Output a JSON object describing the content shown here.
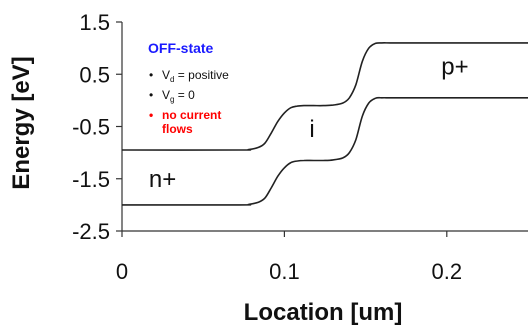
{
  "chart_data": {
    "type": "line",
    "title": "",
    "xlabel": "Location [um]",
    "ylabel": "Energy [eV]",
    "xlim": [
      0,
      0.25
    ],
    "ylim": [
      -2.5,
      1.5
    ],
    "x_ticks": [
      "0",
      "0.1",
      "0.2"
    ],
    "x_tick_values": [
      0,
      0.1,
      0.2
    ],
    "y_ticks": [
      "1.5",
      "0.5",
      "-0.5",
      "-1.5",
      "-2.5"
    ],
    "y_tick_values": [
      1.5,
      0.5,
      -0.5,
      -1.5,
      -2.5
    ],
    "grid": false,
    "series": [
      {
        "x": [
          0.0,
          0.072,
          0.078,
          0.084,
          0.088,
          0.092,
          0.096,
          0.1,
          0.104,
          0.108,
          0.112,
          0.118,
          0.124,
          0.13,
          0.136,
          0.14,
          0.144,
          0.148,
          0.152,
          0.156,
          0.16,
          0.165,
          0.175,
          0.25
        ],
        "y": [
          -0.95,
          -0.95,
          -0.94,
          -0.9,
          -0.82,
          -0.62,
          -0.4,
          -0.24,
          -0.14,
          -0.11,
          -0.1,
          -0.1,
          -0.1,
          -0.09,
          -0.05,
          0.05,
          0.3,
          0.75,
          1.0,
          1.09,
          1.1,
          1.1,
          1.1,
          1.1
        ]
      },
      {
        "x": [
          0.0,
          0.072,
          0.078,
          0.084,
          0.088,
          0.092,
          0.096,
          0.1,
          0.104,
          0.108,
          0.112,
          0.118,
          0.124,
          0.13,
          0.136,
          0.14,
          0.144,
          0.148,
          0.152,
          0.156,
          0.16,
          0.165,
          0.175,
          0.25
        ],
        "y": [
          -2.0,
          -2.0,
          -1.99,
          -1.95,
          -1.87,
          -1.67,
          -1.45,
          -1.29,
          -1.19,
          -1.16,
          -1.15,
          -1.15,
          -1.15,
          -1.14,
          -1.1,
          -1.0,
          -0.75,
          -0.3,
          -0.05,
          0.04,
          0.05,
          0.05,
          0.05,
          0.05
        ]
      }
    ],
    "region_labels": [
      {
        "text": "n+",
        "x": 0.025,
        "y": -1.5
      },
      {
        "text": "i",
        "x": 0.117,
        "y": -0.55
      },
      {
        "text": "p+",
        "x": 0.205,
        "y": 0.65
      }
    ],
    "annotation": {
      "title": "OFF-state",
      "items": [
        {
          "main": "V",
          "sub": "d",
          "rest": " = positive"
        },
        {
          "main": "V",
          "sub": "g",
          "rest": " = 0"
        }
      ],
      "warning_lines": [
        "no current",
        "flows"
      ],
      "title_color": "#1a1aff",
      "warning_color": "#ff0000"
    }
  }
}
